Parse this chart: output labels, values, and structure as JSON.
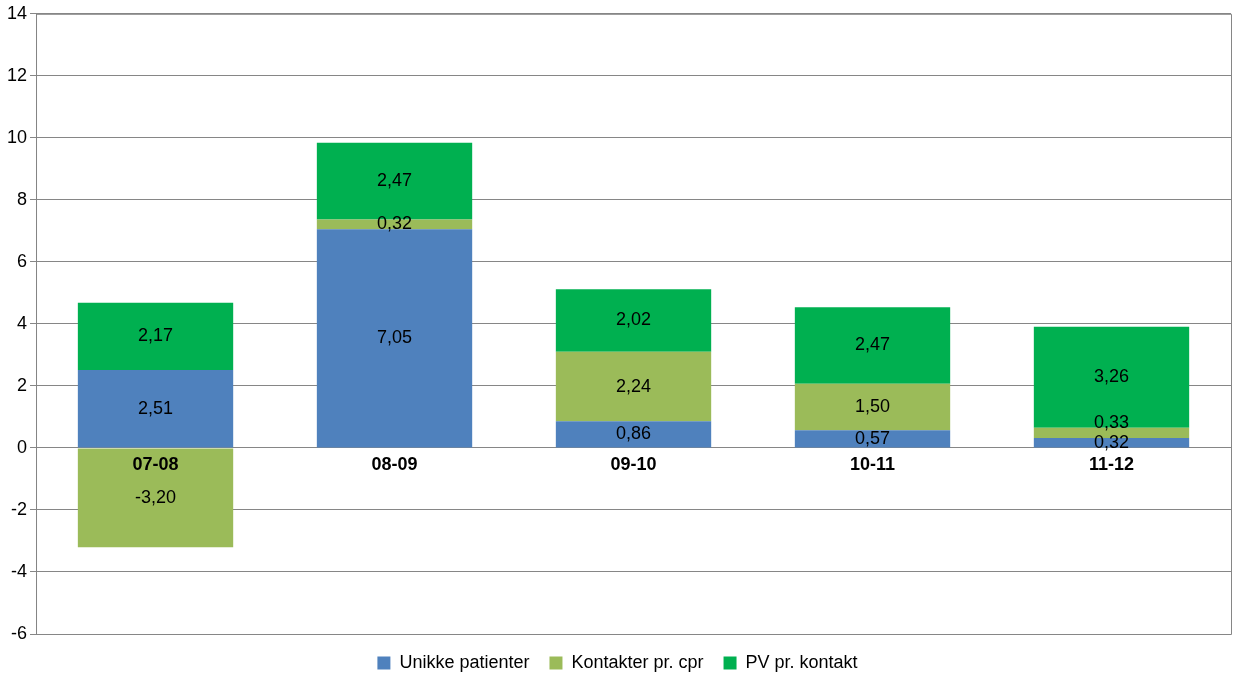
{
  "chart_data": {
    "type": "bar",
    "stacked": true,
    "categories": [
      "07-08",
      "08-09",
      "09-10",
      "10-11",
      "11-12"
    ],
    "series": [
      {
        "name": "Unikke patienter",
        "color": "#4f81bd",
        "values": [
          2.51,
          7.05,
          0.86,
          0.57,
          0.32
        ],
        "value_labels": [
          "2,51",
          "7,05",
          "0,86",
          "0,57",
          "0,32"
        ]
      },
      {
        "name": "Kontakter pr. cpr",
        "color": "#9bbb59",
        "values": [
          -3.2,
          0.32,
          2.24,
          1.5,
          0.33
        ],
        "value_labels": [
          "-3,20",
          "0,32",
          "2,24",
          "1,50",
          "0,33"
        ]
      },
      {
        "name": "PV pr. kontakt",
        "color": "#00b050",
        "values": [
          2.17,
          2.47,
          2.02,
          2.47,
          3.26
        ],
        "value_labels": [
          "2,17",
          "2,47",
          "2,02",
          "2,47",
          "3,26"
        ]
      }
    ],
    "ylim": [
      -6,
      14
    ],
    "yticks": [
      -6,
      -4,
      -2,
      0,
      2,
      4,
      6,
      8,
      10,
      12,
      14
    ],
    "grid": "y",
    "legend": "bottom"
  }
}
